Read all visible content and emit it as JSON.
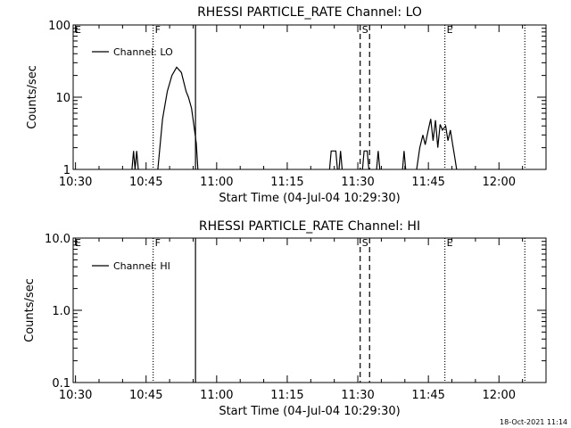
{
  "chart_data": [
    {
      "type": "line",
      "title": "RHESSI PARTICLE_RATE Channel: LO",
      "ylabel": "Counts/sec",
      "xlabel": "Start Time (04-Jul-04 10:29:30)",
      "y_scale": "log",
      "ylim": [
        1,
        100
      ],
      "y_ticks": [
        {
          "value": 1,
          "label": "1"
        },
        {
          "value": 10,
          "label": "10"
        },
        {
          "value": 100,
          "label": "100"
        }
      ],
      "xlim": [
        "10:29:30",
        "12:10:00"
      ],
      "x_ticks": [
        "10:30",
        "10:45",
        "11:00",
        "11:15",
        "11:30",
        "11:45",
        "12:00"
      ],
      "legend": {
        "label": "Channel: LO",
        "position": "top-left"
      },
      "markers": [
        {
          "label": "E",
          "time": "10:29:30",
          "style": "none"
        },
        {
          "label": "F",
          "time": "10:46:30",
          "style": "dotted"
        },
        {
          "label": "",
          "time": "10:55:30",
          "style": "solid"
        },
        {
          "label": "S",
          "time": "11:30:30",
          "style": "dashed"
        },
        {
          "label": "",
          "time": "11:32:30",
          "style": "dashed"
        },
        {
          "label": "E",
          "time": "11:48:30",
          "style": "dotted"
        },
        {
          "label": "",
          "time": "12:05:30",
          "style": "dotted"
        }
      ],
      "series": [
        {
          "name": "Channel: LO",
          "segments": [
            [
              [
                "10:42:00",
                1
              ],
              [
                "10:42:20",
                1.8
              ],
              [
                "10:42:40",
                1
              ],
              [
                "10:43:00",
                1.8
              ],
              [
                "10:43:20",
                1
              ]
            ],
            [
              [
                "10:47:30",
                1
              ],
              [
                "10:48:30",
                5
              ],
              [
                "10:49:30",
                12
              ],
              [
                "10:50:30",
                20
              ],
              [
                "10:51:30",
                26
              ],
              [
                "10:52:30",
                22
              ],
              [
                "10:53:30",
                12
              ],
              [
                "10:54:00",
                10
              ],
              [
                "10:54:40",
                7
              ],
              [
                "10:55:10",
                4
              ],
              [
                "10:55:40",
                2.3
              ],
              [
                "10:56:00",
                1
              ]
            ],
            [
              [
                "11:24:00",
                1
              ],
              [
                "11:24:20",
                1.8
              ],
              [
                "11:25:20",
                1.8
              ],
              [
                "11:25:40",
                1
              ]
            ],
            [
              [
                "11:26:00",
                1
              ],
              [
                "11:26:20",
                1.8
              ],
              [
                "11:26:40",
                1
              ]
            ],
            [
              [
                "11:31:00",
                1
              ],
              [
                "11:31:20",
                1.8
              ],
              [
                "11:32:00",
                1.8
              ],
              [
                "11:32:20",
                1
              ]
            ],
            [
              [
                "11:34:00",
                1
              ],
              [
                "11:34:20",
                1.8
              ],
              [
                "11:34:40",
                1
              ]
            ],
            [
              [
                "11:39:30",
                1
              ],
              [
                "11:39:50",
                1.8
              ],
              [
                "11:40:10",
                1
              ]
            ],
            [
              [
                "11:42:30",
                1
              ],
              [
                "11:43:10",
                2
              ],
              [
                "11:43:50",
                3
              ],
              [
                "11:44:20",
                2.2
              ],
              [
                "11:45:00",
                3.6
              ],
              [
                "11:45:30",
                5
              ],
              [
                "11:46:00",
                2.5
              ],
              [
                "11:46:30",
                4.8
              ],
              [
                "11:47:00",
                2
              ],
              [
                "11:47:30",
                4.2
              ],
              [
                "11:48:00",
                3.5
              ],
              [
                "11:48:40",
                4
              ],
              [
                "11:49:10",
                2.5
              ],
              [
                "11:49:40",
                3.5
              ],
              [
                "11:50:10",
                2.2
              ],
              [
                "11:50:40",
                1.4
              ],
              [
                "11:51:00",
                1
              ]
            ]
          ]
        }
      ]
    },
    {
      "type": "line",
      "title": "RHESSI PARTICLE_RATE Channel: HI",
      "ylabel": "Counts/sec",
      "xlabel": "Start Time (04-Jul-04 10:29:30)",
      "y_scale": "log",
      "ylim": [
        0.1,
        10
      ],
      "y_ticks": [
        {
          "value": 0.1,
          "label": "0.1"
        },
        {
          "value": 1,
          "label": "1.0"
        },
        {
          "value": 10,
          "label": "10.0"
        }
      ],
      "xlim": [
        "10:29:30",
        "12:10:00"
      ],
      "x_ticks": [
        "10:30",
        "10:45",
        "11:00",
        "11:15",
        "11:30",
        "11:45",
        "12:00"
      ],
      "legend": {
        "label": "Channel: HI",
        "position": "top-left"
      },
      "markers": [
        {
          "label": "E",
          "time": "10:29:30",
          "style": "none"
        },
        {
          "label": "F",
          "time": "10:46:30",
          "style": "dotted"
        },
        {
          "label": "",
          "time": "10:55:30",
          "style": "solid"
        },
        {
          "label": "S",
          "time": "11:30:30",
          "style": "dashed"
        },
        {
          "label": "",
          "time": "11:32:30",
          "style": "dashed"
        },
        {
          "label": "E",
          "time": "11:48:30",
          "style": "dotted"
        },
        {
          "label": "",
          "time": "12:05:30",
          "style": "dotted"
        }
      ],
      "series": [
        {
          "name": "Channel: HI",
          "segments": []
        }
      ]
    }
  ],
  "footer": {
    "timestamp": "18-Oct-2021 11:14"
  }
}
